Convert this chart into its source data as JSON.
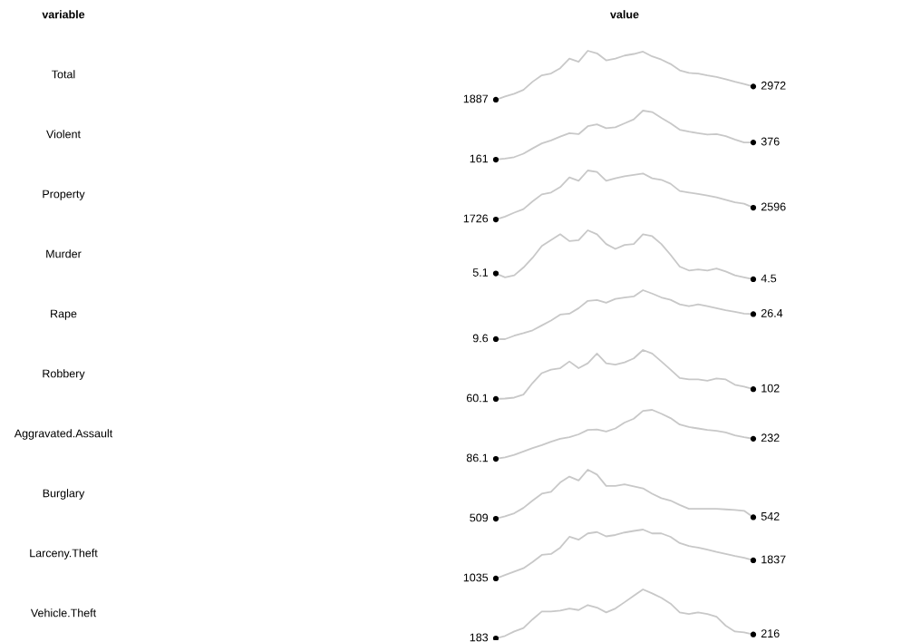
{
  "chart_data": [
    {
      "type": "line",
      "ylabel": "Total",
      "annotations": [
        "variable",
        "value"
      ],
      "categories": [
        null,
        null,
        null,
        null,
        null,
        null,
        null,
        null,
        null,
        null,
        null,
        null,
        null,
        null,
        null,
        null,
        null,
        null,
        null,
        null,
        null,
        null,
        null,
        null,
        null,
        null,
        null,
        null,
        null
      ],
      "series": [
        {
          "color": "#c8c8c8",
          "values": [
            1887,
            2150,
            2380,
            2690,
            3360,
            3880,
            4030,
            4470,
            5250,
            4990,
            5890,
            5680,
            5110,
            5250,
            5500,
            5630,
            5820,
            5430,
            5170,
            4810,
            4290,
            4080,
            4030,
            3880,
            3750,
            3570,
            3360,
            3180,
            2972
          ],
          "value_labels": [
            "1887",
            null,
            null,
            null,
            null,
            null,
            null,
            null,
            null,
            null,
            null,
            null,
            null,
            null,
            null,
            null,
            null,
            null,
            null,
            null,
            null,
            null,
            null,
            null,
            null,
            null,
            null,
            null,
            "2972"
          ]
        }
      ]
    },
    {
      "type": "line",
      "ylabel": "Violent",
      "categories": [
        null,
        null,
        null,
        null,
        null,
        null,
        null,
        null,
        null,
        null,
        null,
        null,
        null,
        null,
        null,
        null,
        null,
        null,
        null,
        null,
        null,
        null,
        null,
        null,
        null,
        null,
        null,
        null,
        null
      ],
      "series": [
        {
          "color": "#c8c8c8",
          "values": [
            161,
            173,
            192,
            235,
            302,
            364,
            401,
            450,
            493,
            480,
            579,
            603,
            554,
            566,
            616,
            665,
            775,
            757,
            683,
            616,
            536,
            511,
            493,
            474,
            480,
            456,
            413,
            376,
            376
          ],
          "value_labels": [
            "161",
            null,
            null,
            null,
            null,
            null,
            null,
            null,
            null,
            null,
            null,
            null,
            null,
            null,
            null,
            null,
            null,
            null,
            null,
            null,
            null,
            null,
            null,
            null,
            null,
            null,
            null,
            null,
            "376"
          ]
        }
      ]
    },
    {
      "type": "line",
      "ylabel": "Property",
      "categories": [
        null,
        null,
        null,
        null,
        null,
        null,
        null,
        null,
        null,
        null,
        null,
        null,
        null,
        null,
        null,
        null,
        null,
        null,
        null,
        null,
        null,
        null,
        null,
        null,
        null,
        null,
        null,
        null,
        null
      ],
      "series": [
        {
          "color": "#c8c8c8",
          "values": [
            1726,
            1940,
            2230,
            2490,
            3070,
            3580,
            3720,
            4120,
            4840,
            4590,
            5350,
            5240,
            4590,
            4770,
            4920,
            5030,
            5130,
            4770,
            4660,
            4370,
            3830,
            3720,
            3610,
            3500,
            3360,
            3180,
            3000,
            2890,
            2596
          ],
          "value_labels": [
            "1726",
            null,
            null,
            null,
            null,
            null,
            null,
            null,
            null,
            null,
            null,
            null,
            null,
            null,
            null,
            null,
            null,
            null,
            null,
            null,
            null,
            null,
            null,
            null,
            null,
            null,
            null,
            null,
            "2596"
          ]
        }
      ]
    },
    {
      "type": "line",
      "ylabel": "Murder",
      "categories": [
        null,
        null,
        null,
        null,
        null,
        null,
        null,
        null,
        null,
        null,
        null,
        null,
        null,
        null,
        null,
        null,
        null,
        null,
        null,
        null,
        null,
        null,
        null,
        null,
        null,
        null,
        null,
        null,
        null
      ],
      "series": [
        {
          "color": "#c8c8c8",
          "values": [
            5.1,
            4.7,
            4.9,
            5.7,
            6.7,
            7.9,
            8.5,
            9.1,
            8.4,
            8.5,
            9.5,
            9.1,
            8.1,
            7.6,
            8.0,
            8.1,
            9.1,
            8.9,
            8.1,
            7.0,
            5.8,
            5.4,
            5.5,
            5.4,
            5.6,
            5.3,
            4.9,
            4.7,
            4.5
          ],
          "value_labels": [
            "5.1",
            null,
            null,
            null,
            null,
            null,
            null,
            null,
            null,
            null,
            null,
            null,
            null,
            null,
            null,
            null,
            null,
            null,
            null,
            null,
            null,
            null,
            null,
            null,
            null,
            null,
            null,
            null,
            "4.5"
          ]
        }
      ]
    },
    {
      "type": "line",
      "ylabel": "Rape",
      "categories": [
        null,
        null,
        null,
        null,
        null,
        null,
        null,
        null,
        null,
        null,
        null,
        null,
        null,
        null,
        null,
        null,
        null,
        null,
        null,
        null,
        null,
        null,
        null,
        null,
        null,
        null,
        null,
        null,
        null
      ],
      "series": [
        {
          "color": "#c8c8c8",
          "values": [
            9.6,
            9.6,
            11.9,
            13.6,
            15.5,
            18.8,
            22.1,
            26.1,
            26.7,
            30.4,
            35.3,
            35.9,
            34.0,
            36.6,
            37.6,
            38.3,
            42.5,
            40.2,
            37.6,
            36.0,
            33.0,
            31.7,
            33.0,
            31.7,
            30.4,
            29.0,
            28.0,
            26.7,
            26.4
          ],
          "value_labels": [
            "9.6",
            null,
            null,
            null,
            null,
            null,
            null,
            null,
            null,
            null,
            null,
            null,
            null,
            null,
            null,
            null,
            null,
            null,
            null,
            null,
            null,
            null,
            null,
            null,
            null,
            null,
            null,
            null,
            "26.4"
          ]
        }
      ]
    },
    {
      "type": "line",
      "ylabel": "Robbery",
      "categories": [
        null,
        null,
        null,
        null,
        null,
        null,
        null,
        null,
        null,
        null,
        null,
        null,
        null,
        null,
        null,
        null,
        null,
        null,
        null,
        null,
        null,
        null,
        null,
        null,
        null,
        null,
        null,
        null,
        null
      ],
      "series": [
        {
          "color": "#c8c8c8",
          "values": [
            60.1,
            62,
            66,
            79,
            129,
            171,
            186,
            192,
            221,
            192,
            213,
            255,
            213,
            207,
            217,
            234,
            270,
            255,
            221,
            186,
            150,
            144,
            144,
            138,
            148,
            144,
            121,
            113,
            102
          ],
          "value_labels": [
            "60.1",
            null,
            null,
            null,
            null,
            null,
            null,
            null,
            null,
            null,
            null,
            null,
            null,
            null,
            null,
            null,
            null,
            null,
            null,
            null,
            null,
            null,
            null,
            null,
            null,
            null,
            null,
            null,
            "102"
          ]
        }
      ]
    },
    {
      "type": "line",
      "ylabel": "Aggravated.Assault",
      "categories": [
        null,
        null,
        null,
        null,
        null,
        null,
        null,
        null,
        null,
        null,
        null,
        null,
        null,
        null,
        null,
        null,
        null,
        null,
        null,
        null,
        null,
        null,
        null,
        null,
        null,
        null,
        null,
        null,
        null
      ],
      "series": [
        {
          "color": "#c8c8c8",
          "values": [
            86.1,
            97,
            115,
            140,
            164,
            186,
            211,
            232,
            243,
            264,
            296,
            300,
            285,
            307,
            350,
            378,
            435,
            442,
            414,
            382,
            335,
            317,
            307,
            296,
            289,
            278,
            257,
            243,
            232
          ],
          "value_labels": [
            "86.1",
            null,
            null,
            null,
            null,
            null,
            null,
            null,
            null,
            null,
            null,
            null,
            null,
            null,
            null,
            null,
            null,
            null,
            null,
            null,
            null,
            null,
            null,
            null,
            null,
            null,
            null,
            null,
            "232"
          ]
        }
      ]
    },
    {
      "type": "line",
      "ylabel": "Burglary",
      "categories": [
        null,
        null,
        null,
        null,
        null,
        null,
        null,
        null,
        null,
        null,
        null,
        null,
        null,
        null,
        null,
        null,
        null,
        null,
        null,
        null,
        null,
        null,
        null,
        null,
        null,
        null,
        null,
        null,
        null
      ],
      "series": [
        {
          "color": "#c8c8c8",
          "values": [
            509,
            568,
            639,
            768,
            945,
            1110,
            1157,
            1381,
            1523,
            1428,
            1688,
            1570,
            1299,
            1299,
            1334,
            1287,
            1240,
            1110,
            1004,
            945,
            839,
            745,
            745,
            745,
            745,
            733,
            721,
            698,
            542
          ],
          "value_labels": [
            "509",
            null,
            null,
            null,
            null,
            null,
            null,
            null,
            null,
            null,
            null,
            null,
            null,
            null,
            null,
            null,
            null,
            null,
            null,
            null,
            null,
            null,
            null,
            null,
            null,
            null,
            null,
            null,
            "542"
          ]
        }
      ]
    },
    {
      "type": "line",
      "ylabel": "Larceny.Theft",
      "categories": [
        null,
        null,
        null,
        null,
        null,
        null,
        null,
        null,
        null,
        null,
        null,
        null,
        null,
        null,
        null,
        null,
        null,
        null,
        null,
        null,
        null,
        null,
        null,
        null,
        null,
        null,
        null,
        null,
        null
      ],
      "series": [
        {
          "color": "#c8c8c8",
          "values": [
            1035,
            1190,
            1340,
            1490,
            1770,
            2080,
            2120,
            2400,
            2880,
            2750,
            3030,
            3090,
            2900,
            2960,
            3070,
            3140,
            3200,
            3030,
            3030,
            2880,
            2600,
            2470,
            2400,
            2310,
            2210,
            2120,
            2030,
            1950,
            1837
          ],
          "value_labels": [
            "1035",
            null,
            null,
            null,
            null,
            null,
            null,
            null,
            null,
            null,
            null,
            null,
            null,
            null,
            null,
            null,
            null,
            null,
            null,
            null,
            null,
            null,
            null,
            null,
            null,
            null,
            null,
            null,
            "1837"
          ]
        }
      ]
    },
    {
      "type": "line",
      "ylabel": "Vehicle.Theft",
      "categories": [
        null,
        null,
        null,
        null,
        null,
        null,
        null,
        null,
        null,
        null,
        null,
        null,
        null,
        null,
        null,
        null,
        null,
        null,
        null,
        null,
        null,
        null,
        null,
        null,
        null,
        null,
        null,
        null,
        null
      ],
      "series": [
        {
          "color": "#c8c8c8",
          "values": [
            183,
            204,
            241,
            270,
            344,
            410,
            410,
            418,
            435,
            422,
            464,
            443,
            402,
            435,
            488,
            542,
            596,
            563,
            525,
            476,
            402,
            389,
            402,
            389,
            365,
            290,
            241,
            233,
            216
          ],
          "value_labels": [
            "183",
            null,
            null,
            null,
            null,
            null,
            null,
            null,
            null,
            null,
            null,
            null,
            null,
            null,
            null,
            null,
            null,
            null,
            null,
            null,
            null,
            null,
            null,
            null,
            null,
            null,
            null,
            null,
            "216"
          ]
        }
      ]
    }
  ]
}
